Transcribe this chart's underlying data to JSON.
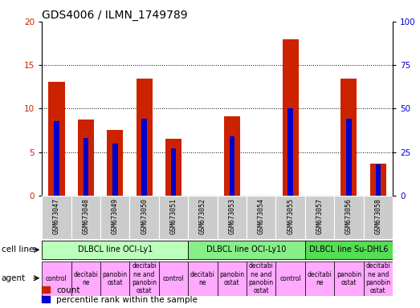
{
  "title": "GDS4006 / ILMN_1749789",
  "samples": [
    "GSM673047",
    "GSM673048",
    "GSM673049",
    "GSM673050",
    "GSM673051",
    "GSM673052",
    "GSM673053",
    "GSM673054",
    "GSM673055",
    "GSM673057",
    "GSM673056",
    "GSM673058"
  ],
  "count_values": [
    13.1,
    8.7,
    7.5,
    13.4,
    6.5,
    0.0,
    9.1,
    0.0,
    18.0,
    0.0,
    13.4,
    3.7
  ],
  "percentile_values": [
    8.6,
    6.6,
    6.0,
    8.8,
    5.4,
    0.0,
    6.8,
    0.0,
    10.0,
    0.0,
    8.8,
    3.6
  ],
  "ylim_left": [
    0,
    20
  ],
  "ylim_right": [
    0,
    100
  ],
  "yticks_left": [
    0,
    5,
    10,
    15,
    20
  ],
  "yticks_right": [
    0,
    25,
    50,
    75,
    100
  ],
  "count_color": "#cc2200",
  "percentile_color": "#0000cc",
  "cell_line_groups": [
    {
      "label": "DLBCL line OCI-Ly1",
      "start": 0,
      "end": 4,
      "color": "#bbffbb"
    },
    {
      "label": "DLBCL line OCI-Ly10",
      "start": 5,
      "end": 8,
      "color": "#88ee88"
    },
    {
      "label": "DLBCL line Su-DHL6",
      "start": 9,
      "end": 11,
      "color": "#55dd55"
    }
  ],
  "agent_labels": [
    "control",
    "decitabi\nne",
    "panobin\nostat",
    "decitabi\nne and\npanobin\nostat",
    "control",
    "decitabi\nne",
    "panobin\nostat",
    "decitabi\nne and\npanobin\nostat",
    "control",
    "decitabi\nne",
    "panobin\nostat",
    "decitabi\nne and\npanobin\nostat"
  ],
  "agent_color": "#ffaaff",
  "tick_bg_color": "#cccccc",
  "title_fontsize": 10,
  "label_fontsize": 7.5,
  "tick_fontsize": 7,
  "agent_fontsize": 5.5,
  "legend_fontsize": 7.5,
  "dotted_yvals": [
    5,
    10,
    15
  ],
  "n_samples": 12
}
